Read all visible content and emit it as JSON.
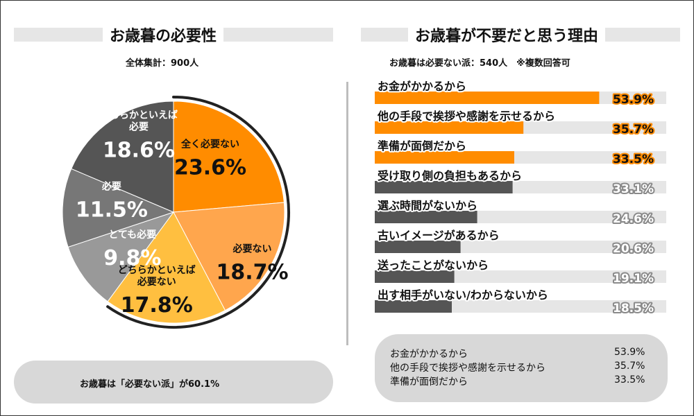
{
  "left_title": "お歳暮の必要性",
  "left_subtitle": "全体集計：900人",
  "left_footer": "お歳暮は「必要ない派」が60.1%",
  "right_title": "お歳暮が不要だと思う理由",
  "right_subtitle": "お歳暮は必要ない派：540人　※複数回答可",
  "colors": {
    "dark": "#555555",
    "mid": "#777777",
    "light_gray": "#999999",
    "orange": "#ff8c00",
    "orange_light": "#ffa64d",
    "yellow": "#ffbf40",
    "track": "#e6e6e6",
    "highlight_bar": "#ff8c00",
    "normal_bar": "#555555"
  },
  "chart_data": [
    {
      "type": "pie",
      "title": "お歳暮の必要性",
      "total_label": "全体集計：900人",
      "start_angle_deg": 0,
      "direction": "clockwise",
      "slices": [
        {
          "name": "全く必要ない",
          "value": 23.6,
          "label": "23.6%",
          "color": "#ff8c00"
        },
        {
          "name": "必要ない",
          "value": 18.7,
          "label": "18.7%",
          "color": "#ffa64d"
        },
        {
          "name": "どちらかといえば必要ない",
          "name_lines": [
            "どちらかといえば",
            "必要ない"
          ],
          "value": 17.8,
          "label": "17.8%",
          "color": "#ffbf40"
        },
        {
          "name": "とても必要",
          "value": 9.8,
          "label": "9.8%",
          "color": "#999999"
        },
        {
          "name": "必要",
          "value": 11.5,
          "label": "11.5%",
          "color": "#777777"
        },
        {
          "name": "どちらかといえば必要",
          "name_lines": [
            "どちらかといえば",
            "必要"
          ],
          "value": 18.6,
          "label": "18.6%",
          "color": "#555555"
        }
      ],
      "bracket": {
        "covers": [
          "全く必要ない",
          "必要ない",
          "どちらかといえば必要ない"
        ],
        "total": 60.1
      }
    },
    {
      "type": "bar",
      "orientation": "horizontal",
      "title": "お歳暮が不要だと思う理由",
      "subtitle": "お歳暮は必要ない派：540人　※複数回答可",
      "xlim": [
        0,
        100
      ],
      "categories": [
        "お金がかかるから",
        "他の手段で挨拶や感謝を示せるから",
        "準備が面倒だから",
        "受け取り側の負担もあるから",
        "選ぶ時間がないから",
        "古いイメージがあるから",
        "送ったことがないから",
        "出す相手がいない/わからないから"
      ],
      "values": [
        53.9,
        35.7,
        33.5,
        33.1,
        24.6,
        20.6,
        19.1,
        18.5
      ],
      "labels": [
        "53.9%",
        "35.7%",
        "33.5%",
        "33.1%",
        "24.6%",
        "20.6%",
        "19.1%",
        "18.5%"
      ],
      "highlight": [
        true,
        true,
        true,
        false,
        false,
        false,
        false,
        false
      ]
    }
  ],
  "summary": {
    "items": [
      {
        "label": "お金がかかるから",
        "value": "53.9%"
      },
      {
        "label": "他の手段で挨拶や感謝を示せるから",
        "value": "35.7%"
      },
      {
        "label": "準備が面倒だから",
        "value": "33.5%"
      }
    ]
  }
}
